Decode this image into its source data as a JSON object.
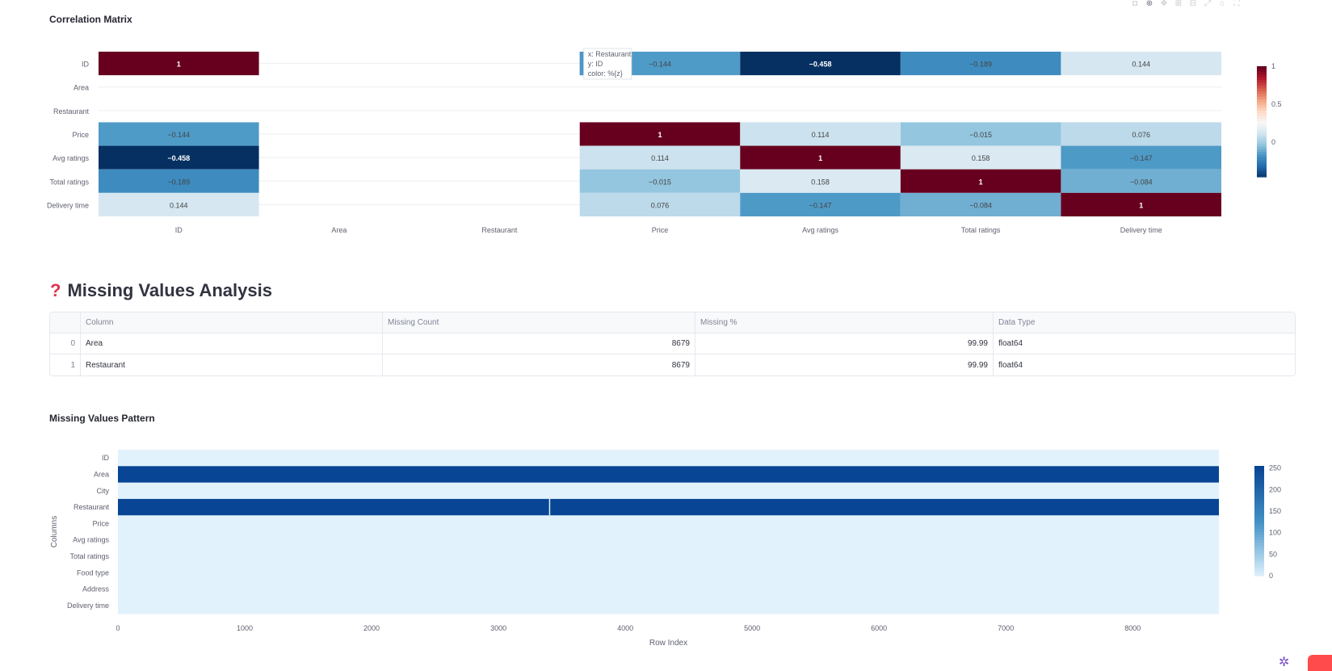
{
  "corr_chart": {
    "title": "Correlation Matrix",
    "chart_data": {
      "type": "heatmap",
      "x": [
        "ID",
        "Area",
        "Restaurant",
        "Price",
        "Avg ratings",
        "Total ratings",
        "Delivery time"
      ],
      "y": [
        "ID",
        "Area",
        "Restaurant",
        "Price",
        "Avg ratings",
        "Total ratings",
        "Delivery time"
      ],
      "z": [
        [
          1,
          null,
          null,
          -0.144,
          -0.458,
          -0.189,
          0.144
        ],
        [
          null,
          null,
          null,
          null,
          null,
          null,
          null
        ],
        [
          null,
          null,
          null,
          null,
          null,
          null,
          null
        ],
        [
          -0.144,
          null,
          null,
          1,
          0.114,
          -0.015,
          0.076
        ],
        [
          -0.458,
          null,
          null,
          0.114,
          1,
          0.158,
          -0.147
        ],
        [
          -0.189,
          null,
          null,
          -0.015,
          0.158,
          1,
          -0.084
        ],
        [
          0.144,
          null,
          null,
          0.076,
          -0.147,
          -0.084,
          1
        ]
      ],
      "cell_labels": [
        [
          "1",
          "",
          "",
          "−0.144",
          "−0.458",
          "−0.189",
          "0.144"
        ],
        [
          "",
          "",
          "",
          "",
          "",
          "",
          ""
        ],
        [
          "",
          "",
          "",
          "",
          "",
          "",
          ""
        ],
        [
          "−0.144",
          "",
          "",
          "1",
          "0.114",
          "−0.015",
          "0.076"
        ],
        [
          "−0.458",
          "",
          "",
          "0.114",
          "1",
          "0.158",
          "−0.147"
        ],
        [
          "−0.189",
          "",
          "",
          "−0.015",
          "0.158",
          "1",
          "−0.084"
        ],
        [
          "0.144",
          "",
          "",
          "0.076",
          "−0.147",
          "−0.084",
          "1"
        ]
      ],
      "colorscale": "RdBu",
      "zrange": [
        -0.458,
        1
      ],
      "colorbar_ticks": [
        {
          "value": 1,
          "label": "1"
        },
        {
          "value": 0.5,
          "label": "0.5"
        },
        {
          "value": 0,
          "label": "0"
        }
      ]
    },
    "tooltip": {
      "lines": [
        "x: Restaurant",
        "y: ID",
        "color: %{z}"
      ],
      "x_category": "Restaurant",
      "y_category": "ID"
    }
  },
  "missing_section": {
    "icon": "question-mark-icon",
    "title": "Missing Values Analysis",
    "table": {
      "columns": [
        "",
        "Column",
        "Missing Count",
        "Missing %",
        "Data Type"
      ],
      "rows": [
        {
          "index": "0",
          "column": "Area",
          "missing_count": "8679",
          "missing_pct": "99.99",
          "dtype": "float64"
        },
        {
          "index": "1",
          "column": "Restaurant",
          "missing_count": "8679",
          "missing_pct": "99.99",
          "dtype": "float64"
        }
      ]
    }
  },
  "pattern_chart": {
    "title": "Missing Values Pattern",
    "chart_data": {
      "type": "heatmap",
      "xlabel": "Row Index",
      "ylabel": "Columns",
      "categories": [
        "ID",
        "Area",
        "City",
        "Restaurant",
        "Price",
        "Avg ratings",
        "Total ratings",
        "Food type",
        "Address",
        "Delivery time"
      ],
      "xlim": [
        0,
        8680
      ],
      "x_ticks": [
        0,
        1000,
        2000,
        3000,
        4000,
        5000,
        6000,
        7000,
        8000
      ],
      "missing_rows": [
        "Area",
        "Restaurant"
      ],
      "present_gap": {
        "row": "Restaurant",
        "x": 3405
      },
      "missing_value": 255,
      "present_value": 0,
      "colorscale": "Blues",
      "colorbar_ticks": [
        0,
        50,
        100,
        150,
        200,
        250
      ],
      "zrange": [
        0,
        255
      ]
    }
  }
}
